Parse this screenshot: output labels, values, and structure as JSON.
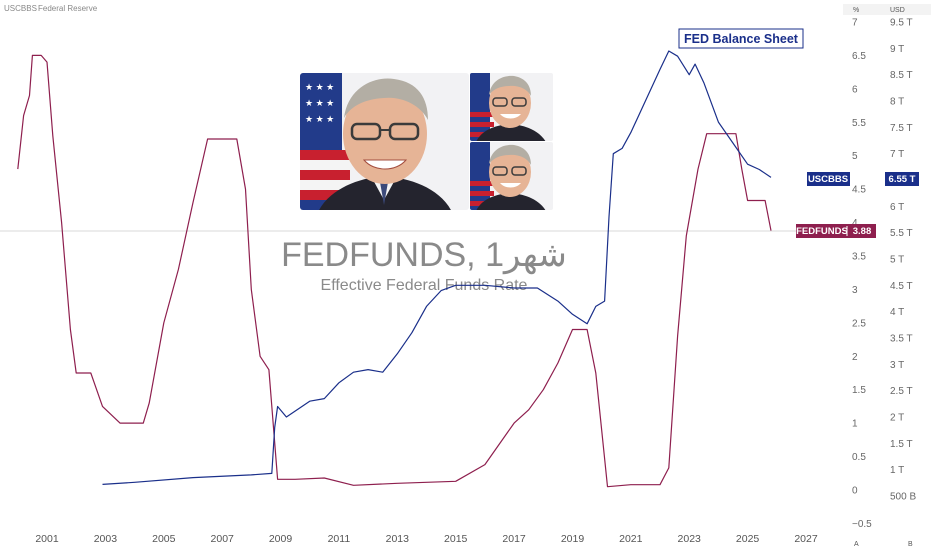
{
  "header": {
    "symbol": "USCBBS",
    "source": "Federal Reserve",
    "left_unit": "%",
    "right_unit": "USD"
  },
  "watermark": {
    "title": "FEDFUNDS, 1شهر",
    "subtitle": "Effective Federal Funds Rate"
  },
  "annotation": {
    "text": "FED Balance Sheet",
    "color": "#1a2f8a"
  },
  "footer": {
    "auto_label": "A",
    "log_label": "B"
  },
  "photo": {
    "description_icon": "person-portrait",
    "colors": {
      "suit": "#2a2a35",
      "skin": "#e8b89a",
      "hair": "#a8a49c",
      "flag_red": "#c8202f",
      "flag_blue": "#233f8f"
    }
  },
  "chart_data": {
    "type": "line",
    "x_axis": {
      "ticks": [
        "2001",
        "2003",
        "2005",
        "2007",
        "2009",
        "2011",
        "2013",
        "2015",
        "2017",
        "2019",
        "2021",
        "2023",
        "2025",
        "2027"
      ],
      "range": [
        2000.0,
        2028.0
      ]
    },
    "y_left": {
      "unit": "%",
      "ticks": [
        "7",
        "6.5",
        "6",
        "5.5",
        "5",
        "4.5",
        "4",
        "3.5",
        "3",
        "2.5",
        "2",
        "1.5",
        "1",
        "0.5",
        "0",
        "−0.5"
      ],
      "range": [
        -0.5,
        7.0
      ]
    },
    "y_right": {
      "unit": "USD",
      "ticks": [
        "9.5 T",
        "9 T",
        "8.5 T",
        "8 T",
        "7.5 T",
        "7 T",
        "6.5 T",
        "6 T",
        "5.5 T",
        "5 T",
        "4.5 T",
        "4 T",
        "3.5 T",
        "3 T",
        "2.5 T",
        "2 T",
        "1.5 T",
        "1 T",
        "500 B"
      ],
      "range_trillions": [
        0.0,
        9.5
      ]
    },
    "series": [
      {
        "name": "FEDFUNDS",
        "color": "#8e1f4e",
        "axis": "left",
        "last_value": "3.88",
        "points": [
          [
            2000.0,
            4.8
          ],
          [
            2000.2,
            5.6
          ],
          [
            2000.4,
            5.9
          ],
          [
            2000.5,
            6.5
          ],
          [
            2000.8,
            6.5
          ],
          [
            2001.0,
            6.4
          ],
          [
            2001.2,
            5.3
          ],
          [
            2001.5,
            4.0
          ],
          [
            2001.8,
            2.4
          ],
          [
            2002.0,
            1.75
          ],
          [
            2002.5,
            1.75
          ],
          [
            2002.9,
            1.25
          ],
          [
            2003.5,
            1.0
          ],
          [
            2004.3,
            1.0
          ],
          [
            2004.5,
            1.3
          ],
          [
            2005.0,
            2.5
          ],
          [
            2005.5,
            3.3
          ],
          [
            2006.0,
            4.3
          ],
          [
            2006.5,
            5.25
          ],
          [
            2007.5,
            5.25
          ],
          [
            2007.8,
            4.5
          ],
          [
            2008.0,
            3.0
          ],
          [
            2008.3,
            2.0
          ],
          [
            2008.6,
            1.8
          ],
          [
            2008.9,
            0.16
          ],
          [
            2009.5,
            0.16
          ],
          [
            2010.5,
            0.18
          ],
          [
            2011.5,
            0.07
          ],
          [
            2013.0,
            0.1
          ],
          [
            2015.0,
            0.13
          ],
          [
            2016.0,
            0.38
          ],
          [
            2017.0,
            1.0
          ],
          [
            2017.5,
            1.2
          ],
          [
            2018.0,
            1.5
          ],
          [
            2018.5,
            1.9
          ],
          [
            2019.0,
            2.4
          ],
          [
            2019.5,
            2.4
          ],
          [
            2019.8,
            1.75
          ],
          [
            2020.2,
            0.05
          ],
          [
            2021.0,
            0.08
          ],
          [
            2022.0,
            0.08
          ],
          [
            2022.3,
            0.33
          ],
          [
            2022.6,
            2.3
          ],
          [
            2022.9,
            3.8
          ],
          [
            2023.3,
            4.8
          ],
          [
            2023.6,
            5.33
          ],
          [
            2024.6,
            5.33
          ],
          [
            2024.8,
            4.8
          ],
          [
            2025.0,
            4.33
          ],
          [
            2025.6,
            4.33
          ],
          [
            2025.8,
            3.88
          ]
        ]
      },
      {
        "name": "USCBBS",
        "color": "#1a2f8a",
        "axis": "right",
        "last_value": "6.55 T",
        "points": [
          [
            2002.9,
            0.72
          ],
          [
            2004.0,
            0.76
          ],
          [
            2006.0,
            0.85
          ],
          [
            2008.0,
            0.9
          ],
          [
            2008.7,
            0.93
          ],
          [
            2008.8,
            1.8
          ],
          [
            2008.9,
            2.2
          ],
          [
            2009.2,
            2.0
          ],
          [
            2010.0,
            2.3
          ],
          [
            2010.5,
            2.35
          ],
          [
            2011.0,
            2.65
          ],
          [
            2011.5,
            2.85
          ],
          [
            2012.0,
            2.9
          ],
          [
            2012.5,
            2.85
          ],
          [
            2013.0,
            3.2
          ],
          [
            2013.5,
            3.6
          ],
          [
            2014.0,
            4.1
          ],
          [
            2014.5,
            4.4
          ],
          [
            2015.0,
            4.5
          ],
          [
            2016.0,
            4.5
          ],
          [
            2017.0,
            4.45
          ],
          [
            2017.8,
            4.45
          ],
          [
            2018.5,
            4.2
          ],
          [
            2019.0,
            3.95
          ],
          [
            2019.5,
            3.77
          ],
          [
            2019.8,
            4.1
          ],
          [
            2020.1,
            4.2
          ],
          [
            2020.25,
            5.8
          ],
          [
            2020.4,
            7.0
          ],
          [
            2020.7,
            7.1
          ],
          [
            2021.0,
            7.4
          ],
          [
            2021.5,
            8.0
          ],
          [
            2022.0,
            8.6
          ],
          [
            2022.3,
            8.95
          ],
          [
            2022.6,
            8.85
          ],
          [
            2023.0,
            8.5
          ],
          [
            2023.2,
            8.7
          ],
          [
            2023.5,
            8.35
          ],
          [
            2024.0,
            7.6
          ],
          [
            2024.5,
            7.2
          ],
          [
            2025.0,
            6.8
          ],
          [
            2025.4,
            6.7
          ],
          [
            2025.8,
            6.55
          ]
        ]
      }
    ],
    "grid": false,
    "legend": "none"
  }
}
